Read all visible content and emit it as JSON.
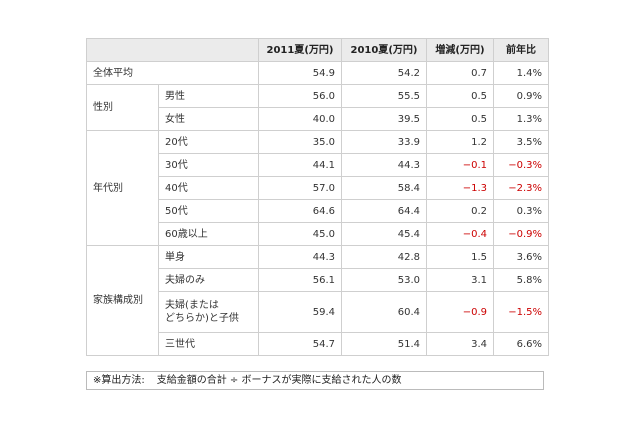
{
  "table": {
    "headers": [
      "",
      "2011夏(万円)",
      "2010夏(万円)",
      "増減(万円)",
      "前年比"
    ],
    "rows": {
      "overall": {
        "label": "全体平均",
        "v2011": "54.9",
        "v2010": "54.2",
        "diff": "0.7",
        "ratio": "1.4%"
      },
      "gender": {
        "label": "性別",
        "items": [
          {
            "label": "男性",
            "v2011": "56.0",
            "v2010": "55.5",
            "diff": "0.5",
            "ratio": "0.9%"
          },
          {
            "label": "女性",
            "v2011": "40.0",
            "v2010": "39.5",
            "diff": "0.5",
            "ratio": "1.3%"
          }
        ]
      },
      "age": {
        "label": "年代別",
        "items": [
          {
            "label": "20代",
            "v2011": "35.0",
            "v2010": "33.9",
            "diff": "1.2",
            "ratio": "3.5%"
          },
          {
            "label": "30代",
            "v2011": "44.1",
            "v2010": "44.3",
            "diff": "−0.1",
            "ratio": "−0.3%"
          },
          {
            "label": "40代",
            "v2011": "57.0",
            "v2010": "58.4",
            "diff": "−1.3",
            "ratio": "−2.3%"
          },
          {
            "label": "50代",
            "v2011": "64.6",
            "v2010": "64.4",
            "diff": "0.2",
            "ratio": "0.3%"
          },
          {
            "label": "60歳以上",
            "v2011": "45.0",
            "v2010": "45.4",
            "diff": "−0.4",
            "ratio": "−0.9%"
          }
        ]
      },
      "family": {
        "label": "家族構成別",
        "items": [
          {
            "label": "単身",
            "v2011": "44.3",
            "v2010": "42.8",
            "diff": "1.5",
            "ratio": "3.6%"
          },
          {
            "label": "夫婦のみ",
            "v2011": "56.1",
            "v2010": "53.0",
            "diff": "3.1",
            "ratio": "5.8%"
          },
          {
            "label_line1": "夫婦(または",
            "label_line2": "どちらか)と子供",
            "v2011": "59.4",
            "v2010": "60.4",
            "diff": "−0.9",
            "ratio": "−1.5%"
          },
          {
            "label": "三世代",
            "v2011": "54.7",
            "v2010": "51.4",
            "diff": "3.4",
            "ratio": "6.6%"
          }
        ]
      }
    }
  },
  "note": {
    "prefix": "※算出方法:",
    "text": "支給金額の合計 ÷ ボーナスが実際に支給された人の数"
  },
  "colors": {
    "negative": "#cc0000",
    "header_bg": "#ebebeb",
    "border": "#cfcfcf"
  }
}
